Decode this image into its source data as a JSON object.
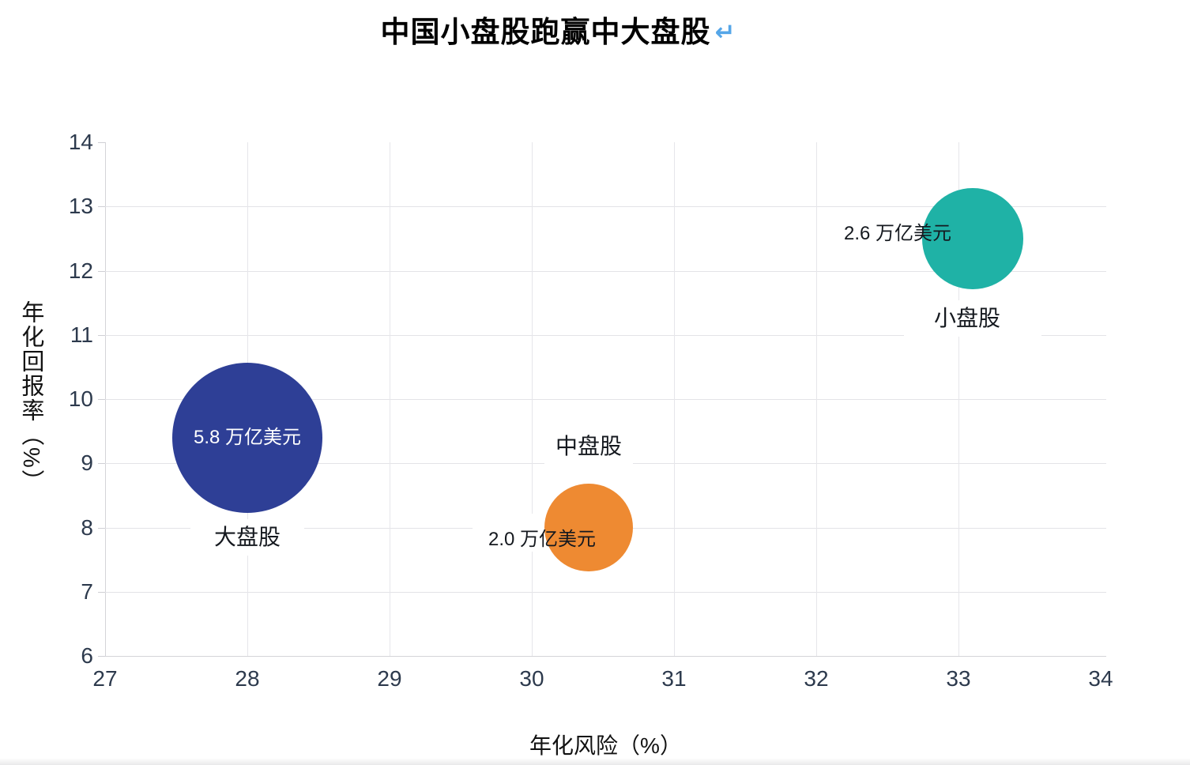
{
  "title": {
    "text": "中国小盘股跑赢中大盘股",
    "paragraph_mark": "↵",
    "paragraph_mark_color": "#55a6e8"
  },
  "chart_data": {
    "type": "scatter",
    "subtype": "bubble",
    "title": "中国小盘股跑赢中大盘股",
    "xlabel": "年化风险（%）",
    "ylabel": "年化回报率（%）",
    "xlim": [
      27,
      34
    ],
    "ylim": [
      6,
      14
    ],
    "xticks": [
      "27",
      "28",
      "29",
      "30",
      "31",
      "32",
      "33",
      "34"
    ],
    "yticks": [
      "6",
      "7",
      "8",
      "9",
      "10",
      "11",
      "12",
      "13",
      "14"
    ],
    "grid": true,
    "legend": "none",
    "points": [
      {
        "name": "大盘股",
        "x": 28.0,
        "y": 9.4,
        "size_trillion_usd": 5.8,
        "size_label": "5.8 万亿美元",
        "color": "#2e3f96",
        "value_label_color": "#ffffff",
        "name_position": "below",
        "value_label_style": "inside"
      },
      {
        "name": "中盘股",
        "x": 30.4,
        "y": 8.0,
        "size_trillion_usd": 2.0,
        "size_label": "2.0 万亿美元",
        "color": "#ee8a32",
        "value_label_color": "#15191f",
        "name_position": "above",
        "value_label_style": "left-overlap"
      },
      {
        "name": "小盘股",
        "x": 33.1,
        "y": 12.5,
        "size_trillion_usd": 2.6,
        "size_label": "2.6 万亿美元",
        "color": "#1fb2a6",
        "value_label_color": "#15191f",
        "name_position": "below",
        "value_label_style": "left-overlap"
      }
    ]
  },
  "colors": {
    "grid": "#e3e3e7",
    "axis": "#d4d4d8",
    "tick_label": "#2d3a4d",
    "text": "#121212",
    "background": "#ffffff"
  }
}
